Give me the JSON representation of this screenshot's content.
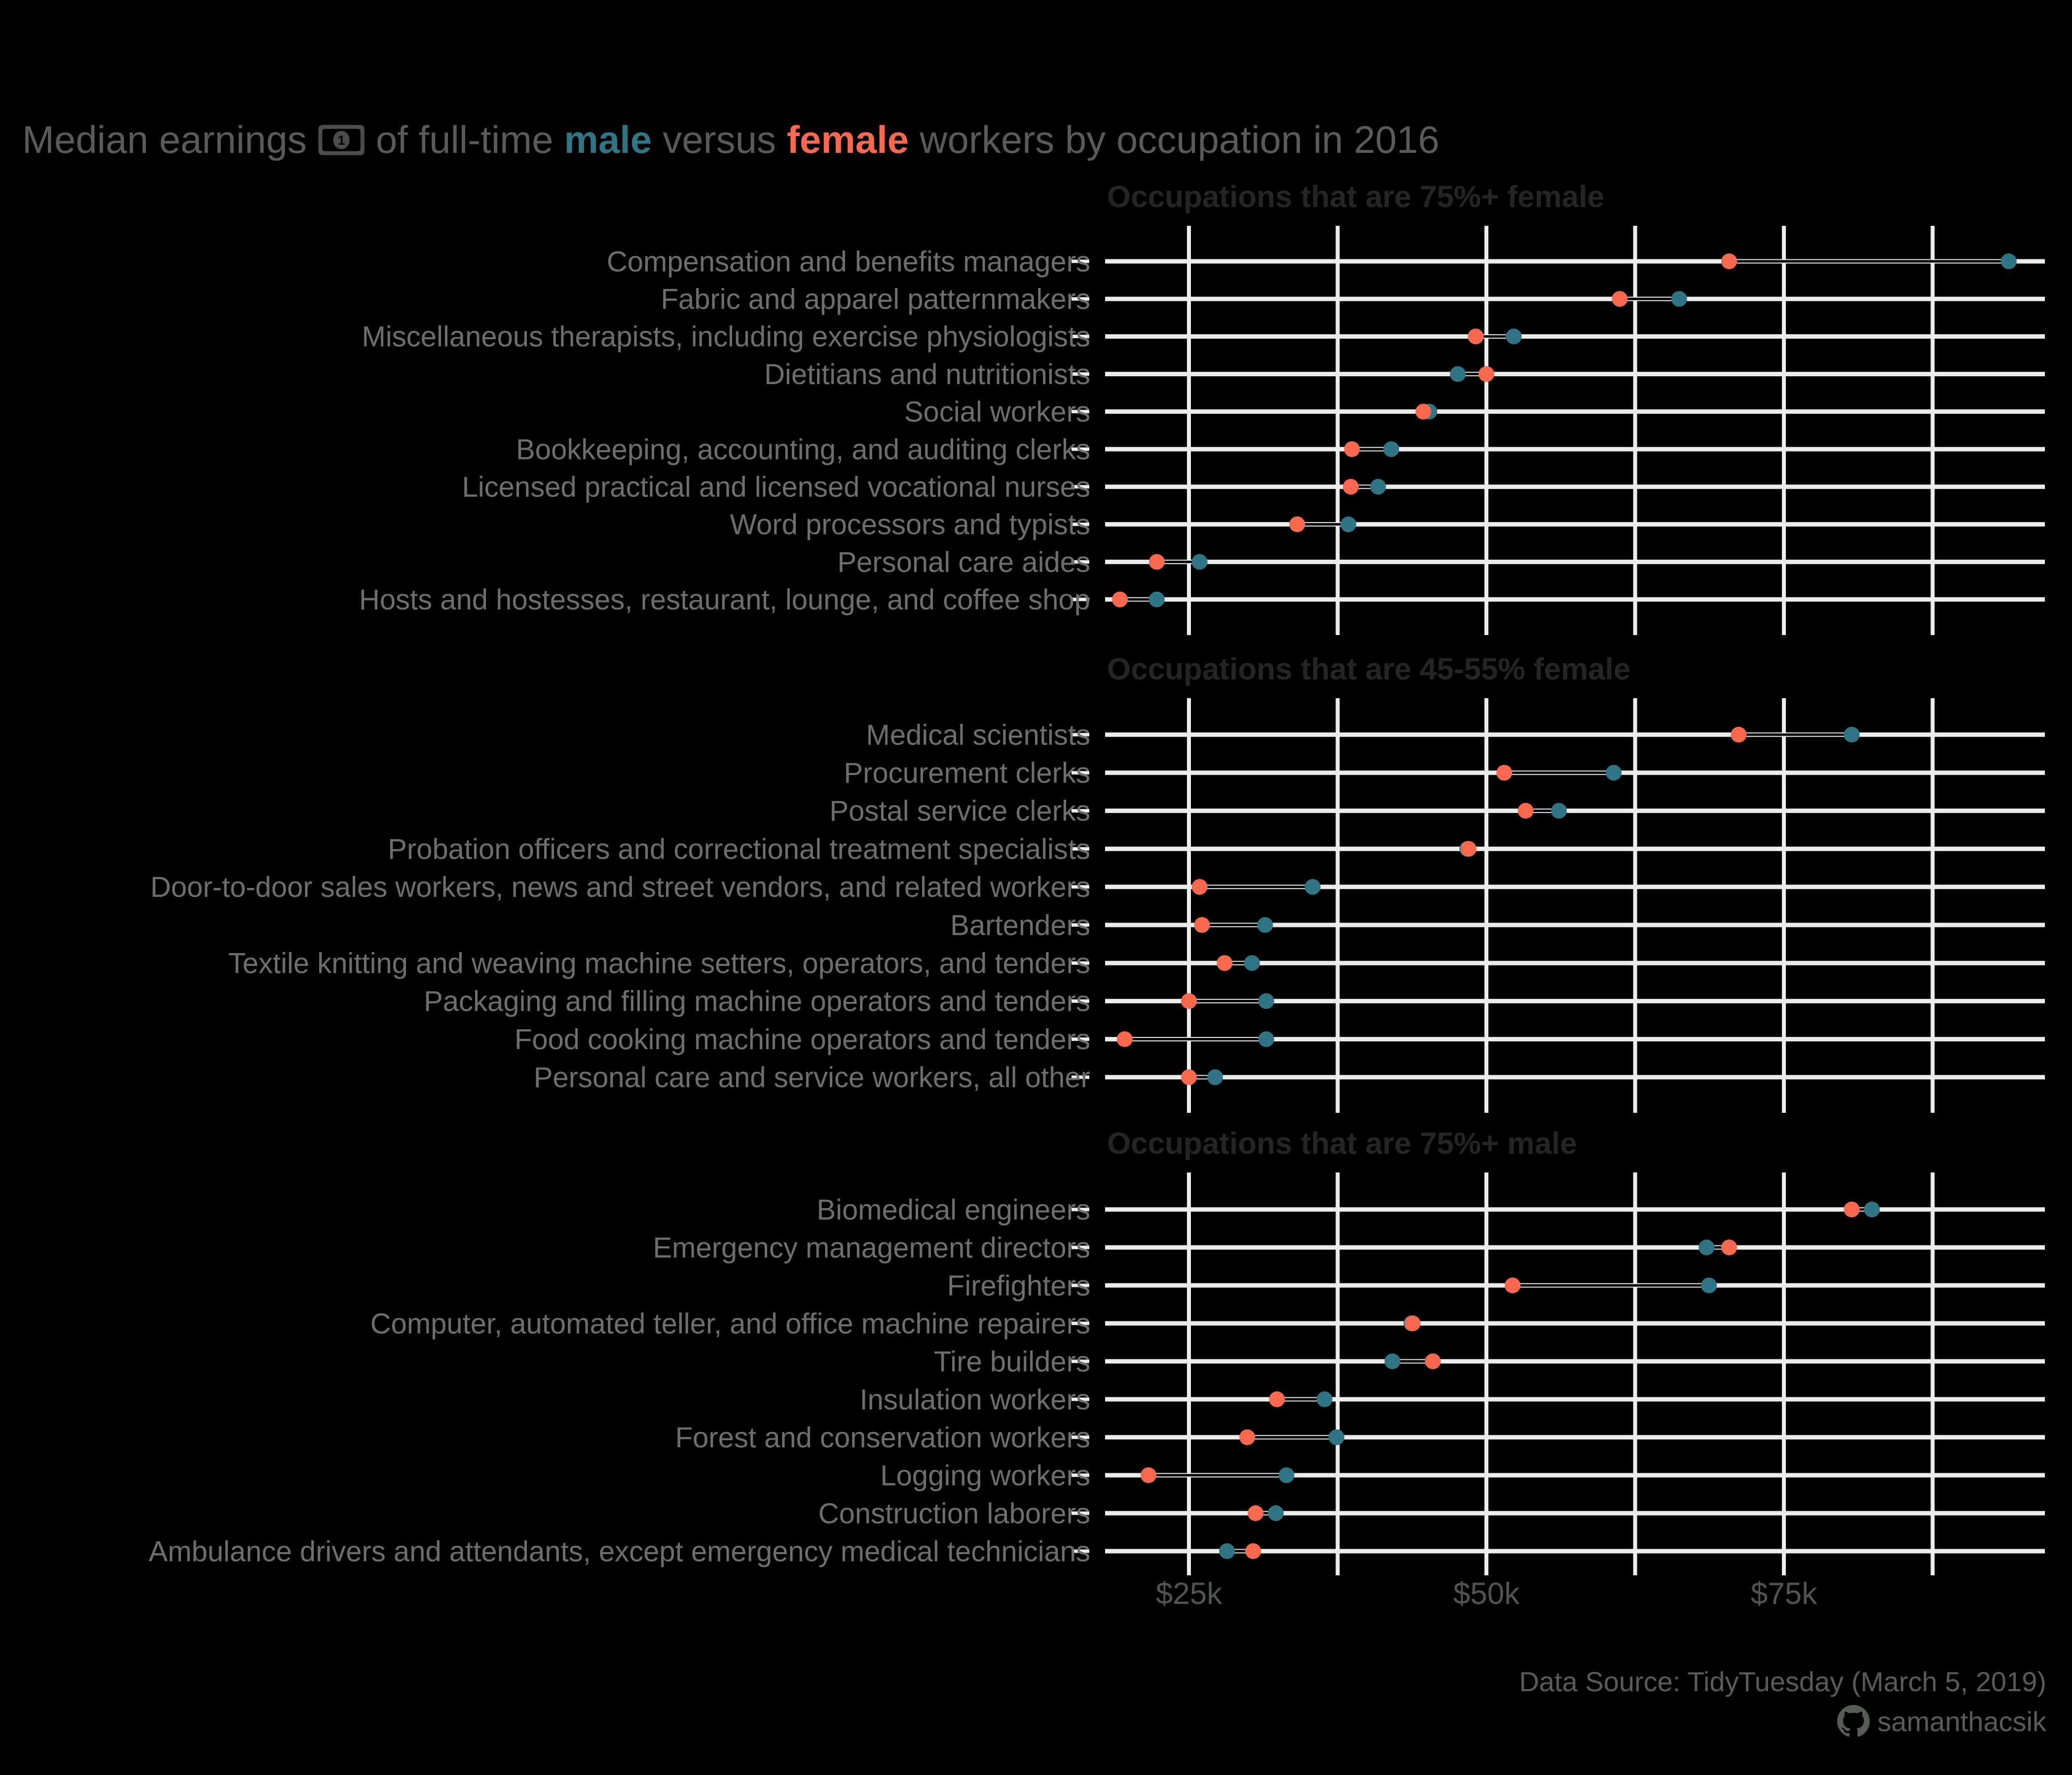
{
  "title": {
    "prefix": "Median earnings",
    "money_icon": "dollar-banknote",
    "middle": "of full-time",
    "male_word": "male",
    "versus": "versus",
    "female_word": "female",
    "suffix": "workers by occupation in 2016"
  },
  "footer": {
    "source": "Data Source: TidyTuesday (March 5, 2019)",
    "credit": "samanthacsik",
    "credit_icon": "github"
  },
  "colors": {
    "male": "#2F7586",
    "female": "#F9694F",
    "background": "#000000",
    "title_text": "#5A5A5A",
    "panel_title_text": "#252525",
    "occupation_label": "#6E6E6E",
    "axis_tick_label": "#4F554F",
    "grid_line": "#ECECEA",
    "row_line": "#EBEBE9",
    "connector": "#000000",
    "footer_text": "#575C57",
    "banknote_icon": "#4C4C4C"
  },
  "x_axis": {
    "tick_labels": [
      "$25k",
      "$50k",
      "$75k"
    ],
    "tick_values_k": [
      25,
      50,
      75
    ],
    "gridline_values_k": [
      25,
      37.5,
      50,
      62.5,
      75,
      87.5
    ]
  },
  "chart_data": {
    "type": "dumbbell",
    "unit": "USD thousands per year",
    "series_legend": [
      {
        "name": "male",
        "color": "#2F7586"
      },
      {
        "name": "female",
        "color": "#F9694F"
      }
    ],
    "xlim_k": [
      18,
      97
    ],
    "grid": true,
    "panels": [
      {
        "title": "Occupations that are 75%+ female",
        "rows": [
          {
            "occupation": "Compensation and benefits managers",
            "female_k": 70.4,
            "male_k": 93.9
          },
          {
            "occupation": "Fabric and apparel patternmakers",
            "female_k": 61.2,
            "male_k": 66.2
          },
          {
            "occupation": "Miscellaneous therapists, including exercise physiologists",
            "female_k": 49.1,
            "male_k": 52.3
          },
          {
            "occupation": "Dietitians and nutritionists",
            "female_k": 50.0,
            "male_k": 47.6
          },
          {
            "occupation": "Social workers",
            "female_k": 44.7,
            "male_k": 45.2
          },
          {
            "occupation": "Bookkeeping, accounting, and auditing clerks",
            "female_k": 38.7,
            "male_k": 42.0
          },
          {
            "occupation": "Licensed practical and licensed vocational nurses",
            "female_k": 38.6,
            "male_k": 40.9
          },
          {
            "occupation": "Word processors and typists",
            "female_k": 34.1,
            "male_k": 38.4
          },
          {
            "occupation": "Personal care aides",
            "female_k": 22.3,
            "male_k": 25.9
          },
          {
            "occupation": "Hosts and hostesses, restaurant, lounge, and coffee shop",
            "female_k": 19.2,
            "male_k": 22.3
          }
        ]
      },
      {
        "title": "Occupations that are 45-55% female",
        "rows": [
          {
            "occupation": "Medical scientists",
            "female_k": 71.2,
            "male_k": 80.7
          },
          {
            "occupation": "Procurement clerks",
            "female_k": 51.5,
            "male_k": 60.7
          },
          {
            "occupation": "Postal service clerks",
            "female_k": 53.3,
            "male_k": 56.1
          },
          {
            "occupation": "Probation officers and correctional treatment specialists",
            "female_k": 48.5,
            "male_k": 48.4
          },
          {
            "occupation": "Door-to-door sales workers, news and street vendors, and related workers",
            "female_k": 25.9,
            "male_k": 35.4
          },
          {
            "occupation": "Bartenders",
            "female_k": 26.1,
            "male_k": 31.4
          },
          {
            "occupation": "Textile knitting and weaving machine setters, operators, and tenders",
            "female_k": 28.0,
            "male_k": 30.3
          },
          {
            "occupation": "Packaging and filling machine operators and tenders",
            "female_k": 25.0,
            "male_k": 31.5
          },
          {
            "occupation": "Food cooking machine operators and tenders",
            "female_k": 19.6,
            "male_k": 31.5
          },
          {
            "occupation": "Personal care and service workers, all other",
            "female_k": 25.0,
            "male_k": 27.2
          }
        ]
      },
      {
        "title": "Occupations that are 75%+ male",
        "rows": [
          {
            "occupation": "Biomedical engineers",
            "female_k": 80.7,
            "male_k": 82.4
          },
          {
            "occupation": "Emergency management directors",
            "female_k": 70.4,
            "male_k": 68.5
          },
          {
            "occupation": "Firefighters",
            "female_k": 52.2,
            "male_k": 68.7
          },
          {
            "occupation": "Computer, automated teller, and office machine repairers",
            "female_k": 43.8,
            "male_k": 43.7
          },
          {
            "occupation": "Tire builders",
            "female_k": 45.5,
            "male_k": 42.1
          },
          {
            "occupation": "Insulation workers",
            "female_k": 32.4,
            "male_k": 36.4
          },
          {
            "occupation": "Forest and conservation workers",
            "female_k": 29.9,
            "male_k": 37.4
          },
          {
            "occupation": "Logging workers",
            "female_k": 21.6,
            "male_k": 33.2
          },
          {
            "occupation": "Construction laborers",
            "female_k": 30.6,
            "male_k": 32.3
          },
          {
            "occupation": "Ambulance drivers and attendants, except emergency medical technicians",
            "female_k": 30.4,
            "male_k": 28.2
          }
        ]
      }
    ]
  }
}
